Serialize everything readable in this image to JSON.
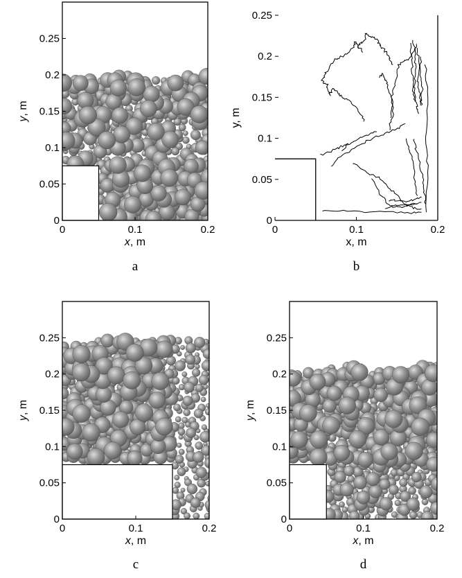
{
  "figure": {
    "panels": [
      {
        "caption": "a",
        "xlabel_var": "x",
        "xlabel_unit": ", m",
        "ylabel_var": "y",
        "ylabel_unit": ", m",
        "x_ticks": [
          "0",
          "0.1",
          "0.2"
        ],
        "y_ticks": [
          "0",
          "0.05",
          "0.1",
          "0.15",
          "0.2",
          "0.25"
        ],
        "xlim": [
          0,
          0.2
        ],
        "ylim": [
          0,
          0.3
        ],
        "obstacle": {
          "x_max": 0.05,
          "y_max": 0.075
        },
        "fill_top": 0.2,
        "ball_color": "#8a8a8a"
      },
      {
        "caption": "b",
        "xlabel_var": "x",
        "xlabel_unit": ", m",
        "ylabel_var": "y",
        "ylabel_unit": ", m",
        "x_ticks": [
          "0",
          "0.1",
          "0.2"
        ],
        "y_ticks": [
          "0",
          "0.05",
          "0.1",
          "0.15",
          "0.2",
          "0.25"
        ],
        "xlim": [
          0,
          0.2
        ],
        "ylim": [
          0,
          0.25
        ],
        "obstacle": {
          "x_max": 0.05,
          "y_max": 0.075
        },
        "trajectories": [
          [
            [
              0.057,
              0.012
            ],
            [
              0.09,
              0.011
            ],
            [
              0.13,
              0.01
            ],
            [
              0.16,
              0.009
            ],
            [
              0.18,
              0.01
            ]
          ],
          [
            [
              0.068,
              0.066
            ],
            [
              0.08,
              0.078
            ],
            [
              0.1,
              0.09
            ],
            [
              0.12,
              0.1
            ],
            [
              0.135,
              0.106
            ],
            [
              0.15,
              0.112
            ],
            [
              0.16,
              0.118
            ]
          ],
          [
            [
              0.082,
              0.086
            ],
            [
              0.095,
              0.095
            ],
            [
              0.11,
              0.103
            ],
            [
              0.125,
              0.108
            ]
          ],
          [
            [
              0.056,
              0.08
            ],
            [
              0.07,
              0.085
            ],
            [
              0.082,
              0.09
            ],
            [
              0.09,
              0.093
            ]
          ],
          [
            [
              0.095,
              0.07
            ],
            [
              0.11,
              0.06
            ],
            [
              0.13,
              0.05
            ],
            [
              0.14,
              0.04
            ],
            [
              0.15,
              0.03
            ],
            [
              0.16,
              0.02
            ],
            [
              0.17,
              0.015
            ],
            [
              0.18,
              0.014
            ]
          ],
          [
            [
              0.12,
              0.05
            ],
            [
              0.13,
              0.03
            ],
            [
              0.14,
              0.02
            ],
            [
              0.155,
              0.016
            ],
            [
              0.175,
              0.02
            ]
          ],
          [
            [
              0.11,
              0.12
            ],
            [
              0.105,
              0.13
            ],
            [
              0.092,
              0.145
            ],
            [
              0.082,
              0.15
            ],
            [
              0.078,
              0.155
            ],
            [
              0.071,
              0.16
            ],
            [
              0.067,
              0.152
            ],
            [
              0.064,
              0.165
            ],
            [
              0.058,
              0.17
            ],
            [
              0.062,
              0.18
            ],
            [
              0.072,
              0.195
            ],
            [
              0.083,
              0.2
            ],
            [
              0.096,
              0.21
            ],
            [
              0.098,
              0.218
            ],
            [
              0.103,
              0.212
            ],
            [
              0.108,
              0.205
            ]
          ],
          [
            [
              0.102,
              0.21
            ],
            [
              0.105,
              0.215
            ],
            [
              0.11,
              0.22
            ],
            [
              0.112,
              0.228
            ],
            [
              0.118,
              0.224
            ],
            [
              0.124,
              0.222
            ],
            [
              0.128,
              0.216
            ],
            [
              0.134,
              0.208
            ],
            [
              0.14,
              0.198
            ],
            [
              0.145,
              0.19
            ]
          ],
          [
            [
              0.14,
              0.11
            ],
            [
              0.145,
              0.13
            ],
            [
              0.143,
              0.15
            ],
            [
              0.148,
              0.17
            ],
            [
              0.152,
              0.19
            ],
            [
              0.16,
              0.195
            ],
            [
              0.168,
              0.2
            ],
            [
              0.174,
              0.215
            ]
          ],
          [
            [
              0.127,
              0.175
            ],
            [
              0.132,
              0.178
            ],
            [
              0.137,
              0.17
            ],
            [
              0.14,
              0.16
            ],
            [
              0.145,
              0.14
            ],
            [
              0.142,
              0.125
            ]
          ],
          [
            [
              0.17,
              0.22
            ],
            [
              0.172,
              0.2
            ],
            [
              0.173,
              0.18
            ],
            [
              0.171,
              0.16
            ],
            [
              0.174,
              0.14
            ],
            [
              0.176,
              0.13
            ]
          ],
          [
            [
              0.166,
              0.215
            ],
            [
              0.168,
              0.195
            ],
            [
              0.169,
              0.175
            ],
            [
              0.17,
              0.155
            ],
            [
              0.172,
              0.145
            ]
          ],
          [
            [
              0.175,
              0.21
            ],
            [
              0.177,
              0.19
            ],
            [
              0.175,
              0.17
            ],
            [
              0.178,
              0.155
            ],
            [
              0.18,
              0.14
            ]
          ],
          [
            [
              0.18,
              0.2
            ],
            [
              0.178,
              0.18
            ],
            [
              0.181,
              0.16
            ],
            [
              0.179,
              0.14
            ]
          ],
          [
            [
              0.17,
              0.1
            ],
            [
              0.175,
              0.08
            ],
            [
              0.18,
              0.06
            ],
            [
              0.183,
              0.04
            ],
            [
              0.185,
              0.02
            ]
          ],
          [
            [
              0.185,
              0.19
            ],
            [
              0.187,
              0.15
            ],
            [
              0.185,
              0.1
            ],
            [
              0.188,
              0.06
            ],
            [
              0.186,
              0.01
            ]
          ],
          [
            [
              0.16,
              0.1
            ],
            [
              0.165,
              0.085
            ],
            [
              0.17,
              0.07
            ],
            [
              0.172,
              0.05
            ],
            [
              0.175,
              0.03
            ]
          ],
          [
            [
              0.14,
              0.025
            ],
            [
              0.15,
              0.024
            ],
            [
              0.16,
              0.022
            ],
            [
              0.17,
              0.025
            ],
            [
              0.18,
              0.028
            ]
          ],
          [
            [
              0.135,
              0.015
            ],
            [
              0.15,
              0.018
            ],
            [
              0.165,
              0.019
            ],
            [
              0.18,
              0.022
            ]
          ]
        ]
      },
      {
        "caption": "c",
        "xlabel_var": "x",
        "xlabel_unit": ", m",
        "ylabel_var": "y",
        "ylabel_unit": ", m",
        "x_ticks": [
          "0",
          "0.1",
          "0.2"
        ],
        "y_ticks": [
          "0",
          "0.05",
          "0.1",
          "0.15",
          "0.2",
          "0.25"
        ],
        "xlim": [
          0,
          0.2
        ],
        "ylim": [
          0,
          0.3
        ],
        "obstacle": {
          "x_max": 0.15,
          "y_max": 0.075
        },
        "fill_top": 0.245,
        "ball_color": "#8a8a8a"
      },
      {
        "caption": "d",
        "xlabel_var": "x",
        "xlabel_unit": ", m",
        "ylabel_var": "y",
        "ylabel_unit": ", m",
        "x_ticks": [
          "0",
          "0.1",
          "0.2"
        ],
        "y_ticks": [
          "0",
          "0.05",
          "0.1",
          "0.15",
          "0.2",
          "0.25"
        ],
        "xlim": [
          0,
          0.2
        ],
        "ylim": [
          0,
          0.3
        ],
        "obstacle": {
          "x_max": 0.05,
          "y_max": 0.075
        },
        "fill_top": 0.21,
        "ball_color": "#8a8a8a"
      }
    ]
  }
}
